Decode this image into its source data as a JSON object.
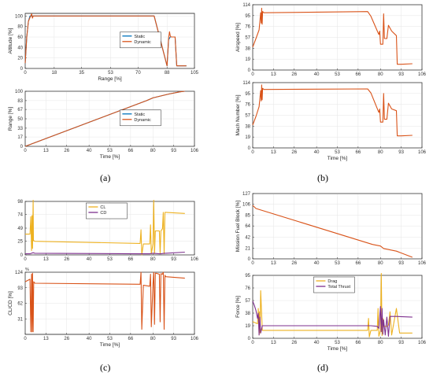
{
  "colors": {
    "blue": "#0072BD",
    "orange": "#D95319",
    "yellow": "#EDB120",
    "purple": "#7E2F8E"
  },
  "captions": {
    "a": "(a)",
    "b": "(b)",
    "c": "(c)",
    "d": "(d)"
  },
  "chart_data": [
    {
      "id": "a1",
      "type": "line",
      "title": "",
      "xlabel": "Range [%]",
      "ylabel": "Altitude [%]",
      "xlim": [
        0,
        105
      ],
      "ylim": [
        0,
        105
      ],
      "xticks": [
        "0",
        "18",
        "35",
        "53",
        "70",
        "88",
        "105"
      ],
      "yticks": [
        "0",
        "20",
        "40",
        "60",
        "80",
        "100"
      ],
      "legend": {
        "placement": "center-right",
        "entries": [
          "Static",
          "Dynamic"
        ]
      },
      "grid": true,
      "series": [
        {
          "name": "Static",
          "color": "#0072BD",
          "x": [
            0,
            1,
            2,
            3,
            4,
            5,
            80,
            88,
            89,
            90,
            93,
            94,
            95,
            96,
            100
          ],
          "y": [
            10,
            60,
            90,
            100,
            100,
            100,
            100,
            5,
            55,
            60,
            60,
            5,
            5,
            5,
            5
          ]
        },
        {
          "name": "Dynamic",
          "color": "#D95319",
          "x": [
            0,
            1,
            2,
            3,
            4,
            4.5,
            5,
            80,
            88,
            89,
            89.5,
            90,
            90.5,
            91,
            93,
            94,
            95,
            96,
            100
          ],
          "y": [
            10,
            60,
            90,
            97,
            104,
            96,
            100,
            100,
            5,
            58,
            70,
            62,
            60,
            60,
            60,
            5,
            5,
            5,
            5
          ]
        }
      ]
    },
    {
      "id": "a2",
      "type": "line",
      "title": "",
      "xlabel": "Time [%]",
      "ylabel": "Range [%]",
      "xlim": [
        0,
        106
      ],
      "ylim": [
        0,
        100
      ],
      "xticks": [
        "0",
        "13",
        "26",
        "40",
        "53",
        "66",
        "80",
        "93",
        "106"
      ],
      "yticks": [
        "0",
        "17",
        "33",
        "50",
        "67",
        "83",
        "100"
      ],
      "legend": {
        "placement": "center-right",
        "entries": [
          "Static",
          "Dynamic"
        ]
      },
      "grid": true,
      "series": [
        {
          "name": "Static",
          "color": "#0072BD",
          "x": [
            0,
            76,
            80,
            90,
            97,
            100
          ],
          "y": [
            0,
            83,
            88,
            95,
            99,
            100
          ]
        },
        {
          "name": "Dynamic",
          "color": "#D95319",
          "x": [
            0,
            76,
            80,
            90,
            97,
            100
          ],
          "y": [
            0,
            83,
            88,
            95,
            99,
            100
          ]
        }
      ]
    },
    {
      "id": "b1",
      "type": "line",
      "title": "",
      "xlabel": "",
      "ylabel": "Airspeed [%]",
      "xlim": [
        0,
        106
      ],
      "ylim": [
        0,
        114
      ],
      "xticks": [
        "0",
        "13",
        "26",
        "40",
        "53",
        "66",
        "80",
        "93",
        "106"
      ],
      "yticks": [
        "0",
        "19",
        "38",
        "57",
        "76",
        "95",
        "114"
      ],
      "legend": {
        "placement": "none",
        "entries": []
      },
      "grid": true,
      "series": [
        {
          "name": "",
          "color": "#D95319",
          "x": [
            0,
            2,
            4,
            5,
            5.3,
            5.6,
            5.9,
            6.2,
            7,
            72,
            74,
            79,
            79.5,
            80,
            81.5,
            82,
            82.5,
            84,
            85,
            87,
            90,
            90.5,
            93,
            100
          ],
          "y": [
            40,
            55,
            70,
            100,
            82,
            108,
            80,
            102,
            100,
            102,
            94,
            62,
            68,
            45,
            45,
            98,
            55,
            55,
            78,
            68,
            60,
            10,
            10,
            11
          ]
        }
      ]
    },
    {
      "id": "b2",
      "type": "line",
      "title": "",
      "xlabel": "Time [%]",
      "ylabel": "Mach Number [%]",
      "xlim": [
        0,
        106
      ],
      "ylim": [
        0,
        114
      ],
      "xticks": [
        "0",
        "13",
        "26",
        "40",
        "53",
        "66",
        "80",
        "93",
        "106"
      ],
      "yticks": [
        "0",
        "19",
        "38",
        "57",
        "76",
        "95",
        "114"
      ],
      "legend": {
        "placement": "none",
        "entries": []
      },
      "grid": true,
      "series": [
        {
          "name": "",
          "color": "#D95319",
          "x": [
            0,
            2,
            4,
            5,
            5.3,
            5.6,
            5.9,
            6.2,
            7,
            72,
            74,
            79,
            79.5,
            80,
            81.5,
            82,
            82.5,
            84,
            85,
            87,
            90,
            90.5,
            93,
            100
          ],
          "y": [
            40,
            55,
            72,
            100,
            82,
            110,
            84,
            104,
            102,
            103,
            96,
            62,
            68,
            45,
            45,
            95,
            50,
            50,
            78,
            68,
            65,
            21,
            21,
            22
          ]
        }
      ]
    },
    {
      "id": "c1",
      "type": "line",
      "title": "",
      "xlabel": "",
      "ylabel": "",
      "xlim": [
        0,
        106
      ],
      "ylim": [
        0,
        98
      ],
      "xticks": [
        "0",
        "13",
        "26",
        "40",
        "53",
        "66",
        "80",
        "93",
        "106"
      ],
      "yticks": [
        "0",
        "25",
        "49",
        "74",
        "98"
      ],
      "legend": {
        "placement": "top-center",
        "entries": [
          "CL",
          "CD"
        ]
      },
      "grid": true,
      "series": [
        {
          "name": "CL",
          "color": "#EDB120",
          "x": [
            0,
            3,
            3.5,
            4,
            4.3,
            4.6,
            5,
            5.2,
            5.5,
            6,
            72,
            72.5,
            73,
            74,
            78,
            78.5,
            79,
            80,
            80.5,
            81,
            81.5,
            82,
            84,
            84.5,
            85,
            86,
            86.5,
            87,
            87.5,
            88,
            100
          ],
          "y": [
            38,
            38,
            70,
            8,
            72,
            12,
            100,
            26,
            26,
            25,
            21,
            46,
            0,
            20,
            20,
            55,
            2,
            20,
            100,
            2,
            44,
            44,
            44,
            2,
            44,
            48,
            78,
            2,
            78,
            78,
            76
          ]
        },
        {
          "name": "CD",
          "color": "#7E2F8E",
          "x": [
            0,
            3,
            4,
            5,
            6,
            72,
            78,
            80,
            84,
            85,
            87,
            88,
            100
          ],
          "y": [
            2,
            2,
            3,
            4,
            3,
            2,
            2,
            3,
            2,
            2,
            3,
            3,
            5
          ]
        }
      ]
    },
    {
      "id": "c2",
      "type": "line",
      "title": "",
      "xlabel": "Time [%]",
      "ylabel": "CL/CD [%]",
      "xlim": [
        0,
        106
      ],
      "ylim": [
        0,
        124
      ],
      "xticks": [
        "0",
        "13",
        "26",
        "40",
        "53",
        "66",
        "80",
        "93",
        "106"
      ],
      "yticks": [
        "31",
        "62",
        "93",
        "124"
      ],
      "axis_note": "%",
      "legend": {
        "placement": "none",
        "entries": []
      },
      "grid": true,
      "series": [
        {
          "name": "",
          "color": "#D95319",
          "x": [
            0,
            3,
            3.5,
            4,
            4.3,
            4.6,
            5,
            5.3,
            6,
            72,
            72.5,
            73,
            74,
            78,
            78.5,
            79,
            80,
            80.5,
            81,
            81.5,
            82,
            84,
            84.5,
            85,
            86,
            86.5,
            87,
            87.5,
            88,
            100
          ],
          "y": [
            105,
            110,
            5,
            120,
            5,
            122,
            5,
            105,
            102,
            100,
            124,
            10,
            98,
            96,
            120,
            15,
            100,
            124,
            20,
            122,
            122,
            120,
            25,
            121,
            120,
            124,
            10,
            118,
            115,
            112
          ]
        }
      ]
    },
    {
      "id": "d1",
      "type": "line",
      "title": "",
      "xlabel": "",
      "ylabel": "Mission Fuel Block [%]",
      "xlim": [
        0,
        106
      ],
      "ylim": [
        0,
        127
      ],
      "xticks": [
        "0",
        "13",
        "26",
        "40",
        "53",
        "66",
        "80",
        "93",
        "106"
      ],
      "yticks": [
        "0",
        "21",
        "42",
        "64",
        "85",
        "106",
        "127"
      ],
      "legend": {
        "placement": "none",
        "entries": []
      },
      "grid": true,
      "series": [
        {
          "name": "",
          "color": "#D95319",
          "x": [
            0,
            2,
            75,
            80,
            82,
            90,
            100
          ],
          "y": [
            104,
            98,
            28,
            25,
            20,
            15,
            3
          ]
        }
      ]
    },
    {
      "id": "d2",
      "type": "line",
      "title": "",
      "xlabel": "Time [%]",
      "ylabel": "Force [%]",
      "xlim": [
        0,
        106
      ],
      "ylim": [
        0,
        95
      ],
      "xticks": [
        "0",
        "13",
        "26",
        "40",
        "53",
        "66",
        "80",
        "93",
        "106"
      ],
      "yticks": [
        "0",
        "19",
        "38",
        "57",
        "76",
        "95"
      ],
      "legend": {
        "placement": "top-center",
        "entries": [
          "Drag",
          "Total Thrust"
        ]
      },
      "grid": true,
      "series": [
        {
          "name": "Drag",
          "color": "#EDB120",
          "x": [
            0,
            3,
            3.5,
            4,
            4.3,
            4.6,
            5,
            6,
            72,
            72.5,
            73,
            74,
            78,
            78.5,
            79,
            80,
            80.5,
            81,
            81.5,
            82,
            84,
            85,
            86,
            87,
            90,
            92,
            100
          ],
          "y": [
            25,
            22,
            45,
            5,
            40,
            8,
            72,
            12,
            12,
            30,
            2,
            12,
            12,
            45,
            3,
            12,
            98,
            4,
            30,
            18,
            18,
            20,
            40,
            5,
            45,
            8,
            8
          ]
        },
        {
          "name": "Total Thrust",
          "color": "#7E2F8E",
          "x": [
            0,
            1,
            2,
            3,
            3.5,
            4,
            4.5,
            5,
            6,
            72,
            74,
            78,
            79,
            80,
            80.5,
            81,
            81.5,
            82,
            83,
            84,
            85,
            86,
            90,
            100
          ],
          "y": [
            56,
            50,
            42,
            30,
            38,
            5,
            32,
            8,
            19,
            19,
            19,
            18,
            15,
            48,
            10,
            45,
            6,
            28,
            5,
            32,
            3,
            33,
            33,
            32
          ]
        }
      ]
    }
  ]
}
